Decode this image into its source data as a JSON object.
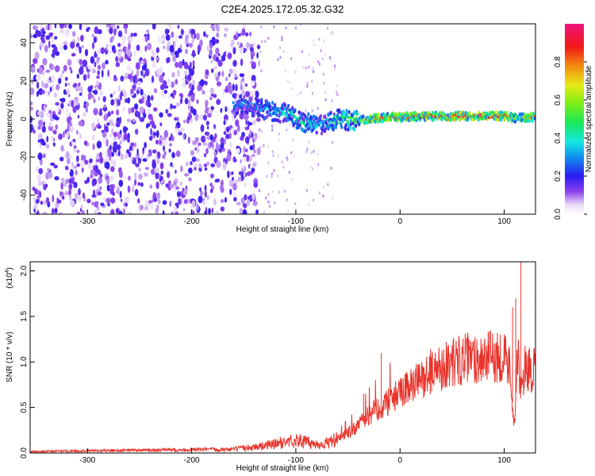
{
  "title": "C2E4.2025.172.05.32.G32",
  "chart_data": [
    {
      "type": "heatmap",
      "xlabel": "Height of straight line (km)",
      "ylabel": "Frequency (Hz)",
      "xlim": [
        -355,
        130
      ],
      "ylim": [
        -50,
        50
      ],
      "x_ticks": [
        -300,
        -200,
        -100,
        0,
        100
      ],
      "x_tick_labels": [
        "-300",
        "-200",
        "-100",
        "0",
        "100"
      ],
      "y_ticks": [
        -40,
        -20,
        0,
        20,
        40
      ],
      "y_tick_labels": [
        "-40",
        "-20",
        "0",
        "20",
        "40"
      ],
      "colorbar": {
        "label": "Normalized spectral amplitude",
        "range": [
          0,
          1
        ],
        "ticks": [
          0.0,
          0.2,
          0.4,
          0.6,
          0.8
        ],
        "tick_labels": [
          "0.0",
          "0.2",
          "0.4",
          "0.6",
          "0.8"
        ],
        "colormap": "white-purple-blue-cyan-green-yellow-red-magenta"
      },
      "ridge": {
        "x": [
          -150,
          -130,
          -110,
          -90,
          -75,
          -60,
          -40,
          -25,
          -10,
          0,
          20,
          50,
          80,
          100,
          110,
          130
        ],
        "frequency_hz": [
          8,
          5,
          3,
          -2,
          -3,
          0,
          -1,
          0,
          1,
          1,
          1.5,
          1.5,
          1.5,
          1.5,
          0.5,
          1
        ],
        "amplitude": [
          0.3,
          0.35,
          0.4,
          0.45,
          0.35,
          0.45,
          0.55,
          0.8,
          0.85,
          0.8,
          0.85,
          0.95,
          0.95,
          0.95,
          0.6,
          0.8
        ]
      },
      "noise_region_x": [
        -355,
        -135
      ],
      "grid": false
    },
    {
      "type": "line",
      "xlabel": "Height of straight line (km)",
      "ylabel": "SNR (10 * v/v)",
      "y_multiplier_label": "(x10",
      "y_multiplier_exp": "4",
      "y_multiplier_close": ")",
      "xlim": [
        -355,
        130
      ],
      "ylim": [
        0,
        21000
      ],
      "x_ticks": [
        -300,
        -200,
        -100,
        0,
        100
      ],
      "x_tick_labels": [
        "-300",
        "-200",
        "-100",
        "0",
        "100"
      ],
      "y_ticks": [
        0,
        5000,
        10000,
        15000,
        20000
      ],
      "y_tick_labels": [
        "0.0",
        "0.5",
        "1.0",
        "1.5",
        "2.0"
      ],
      "color": "#e8342c",
      "series": [
        {
          "x": [
            -355,
            -300,
            -250,
            -200,
            -160,
            -130,
            -110,
            -100,
            -90,
            -80,
            -70,
            -60,
            -50,
            -40,
            -30,
            -20,
            -10,
            0,
            10,
            20,
            30,
            40,
            50,
            60,
            70,
            80,
            90,
            100,
            105,
            110,
            113,
            116,
            120,
            125,
            130
          ],
          "values": [
            150,
            250,
            300,
            350,
            400,
            800,
            1200,
            1400,
            1200,
            900,
            1100,
            1500,
            2200,
            3000,
            4200,
            5000,
            5800,
            6500,
            7300,
            8000,
            9000,
            9500,
            10000,
            10300,
            10400,
            10500,
            10600,
            10700,
            9500,
            3000,
            11000,
            6500,
            9500,
            9200,
            9000
          ]
        }
      ],
      "spikes": [
        {
          "x": -18,
          "y": 11000
        },
        {
          "x": -35,
          "y": 6500
        },
        {
          "x": 108,
          "y": 16000
        },
        {
          "x": 111,
          "y": 17000
        },
        {
          "x": 116,
          "y": 21000
        }
      ],
      "grid": false
    }
  ]
}
